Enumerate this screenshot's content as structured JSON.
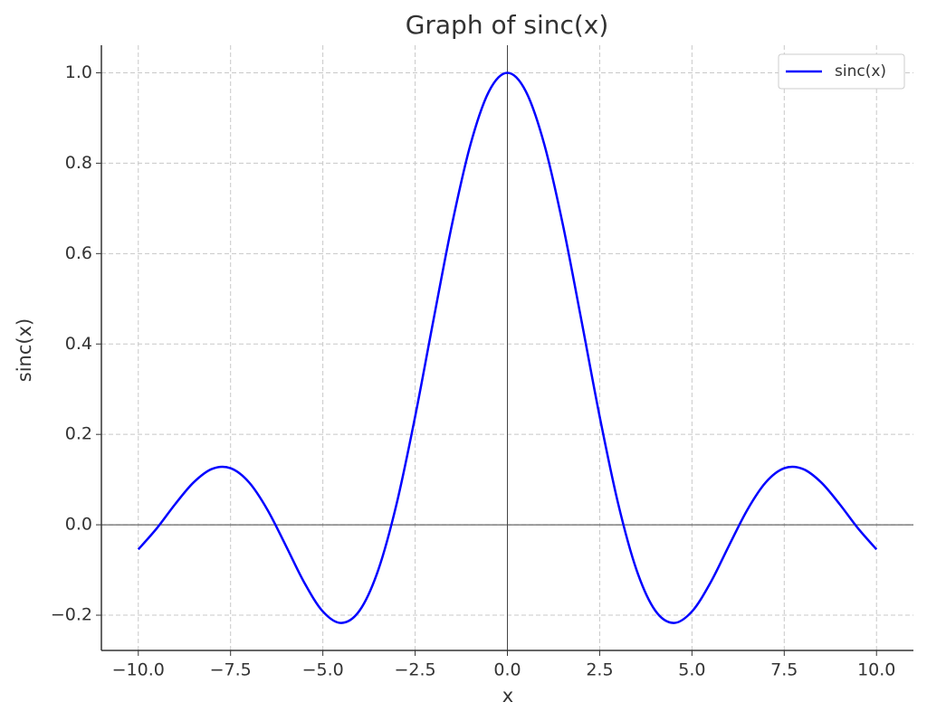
{
  "chart_data": {
    "type": "line",
    "title": "Graph of sinc(x)",
    "x_label": "x",
    "y_label": "sinc(x)",
    "x": [
      -10,
      -9.5,
      -9,
      -8.5,
      -8,
      -7.5,
      -7,
      -6.5,
      -6,
      -5.5,
      -5,
      -4.5,
      -4,
      -3.5,
      -3,
      -2.5,
      -2,
      -1.5,
      -1,
      -0.5,
      0,
      0.5,
      1,
      1.5,
      2,
      2.5,
      3,
      3.5,
      4,
      4.5,
      5,
      5.5,
      6,
      6.5,
      7,
      7.5,
      8,
      8.5,
      9,
      9.5,
      10
    ],
    "series": [
      {
        "name": "sinc(x)",
        "color": "#0000ff",
        "values": [
          -0.0544,
          -0.0079,
          0.0458,
          0.0939,
          0.1237,
          0.1251,
          0.0939,
          0.0331,
          -0.0466,
          -0.1283,
          -0.1918,
          -0.2172,
          -0.1892,
          -0.1002,
          0.047,
          0.2394,
          0.4546,
          0.665,
          0.8415,
          0.9589,
          1,
          0.9589,
          0.8415,
          0.665,
          0.4546,
          0.2394,
          0.047,
          -0.1002,
          -0.1892,
          -0.2172,
          -0.1918,
          -0.1283,
          -0.0466,
          0.0331,
          0.0939,
          0.1251,
          0.1237,
          0.0939,
          0.0458,
          -0.0079,
          -0.0544
        ]
      }
    ],
    "xlim": [
      -11,
      11
    ],
    "ylim": [
      -0.278,
      1.061
    ],
    "xticks": [
      {
        "value": -10,
        "label": "−10.0"
      },
      {
        "value": -7.5,
        "label": "−7.5"
      },
      {
        "value": -5,
        "label": "−5.0"
      },
      {
        "value": -2.5,
        "label": "−2.5"
      },
      {
        "value": 0,
        "label": "0.0"
      },
      {
        "value": 2.5,
        "label": "2.5"
      },
      {
        "value": 5,
        "label": "5.0"
      },
      {
        "value": 7.5,
        "label": "7.5"
      },
      {
        "value": 10,
        "label": "10.0"
      }
    ],
    "yticks": [
      {
        "value": -0.2,
        "label": "−0.2"
      },
      {
        "value": 0,
        "label": "0.0"
      },
      {
        "value": 0.2,
        "label": "0.2"
      },
      {
        "value": 0.4,
        "label": "0.4"
      },
      {
        "value": 0.6,
        "label": "0.6"
      },
      {
        "value": 0.8,
        "label": "0.8"
      },
      {
        "value": 1,
        "label": "1.0"
      }
    ],
    "grid": true,
    "legend": "upper-right"
  }
}
